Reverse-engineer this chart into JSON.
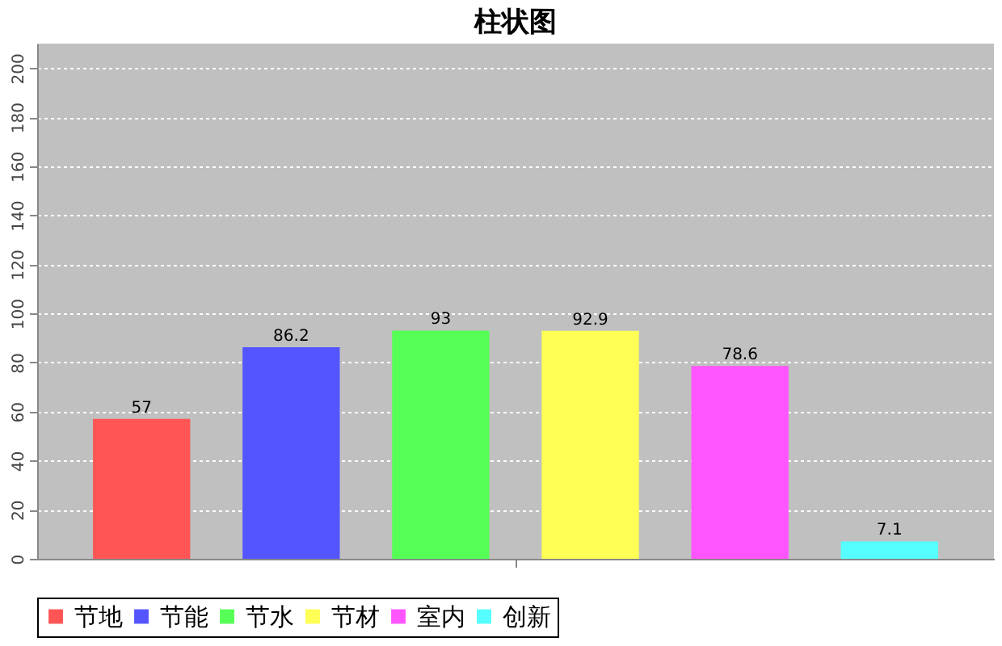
{
  "chart_data": {
    "type": "bar",
    "title": "柱状图",
    "categories": [
      null
    ],
    "series": [
      {
        "name": "节地",
        "color": "#ff5555",
        "values": [
          57
        ]
      },
      {
        "name": "节能",
        "color": "#5555ff",
        "values": [
          86.2
        ]
      },
      {
        "name": "节水",
        "color": "#55ff55",
        "values": [
          93
        ]
      },
      {
        "name": "节材",
        "color": "#ffff55",
        "values": [
          92.9
        ]
      },
      {
        "name": "室内",
        "color": "#ff55ff",
        "values": [
          78.6
        ]
      },
      {
        "name": "创新",
        "color": "#55ffff",
        "values": [
          7.1
        ]
      }
    ],
    "ylim": [
      0,
      210
    ],
    "yticks": [
      0,
      20,
      40,
      60,
      80,
      100,
      120,
      140,
      160,
      180,
      200
    ],
    "grid": "y",
    "legend": "bottom",
    "data_labels": true,
    "tick_labels": "y"
  }
}
